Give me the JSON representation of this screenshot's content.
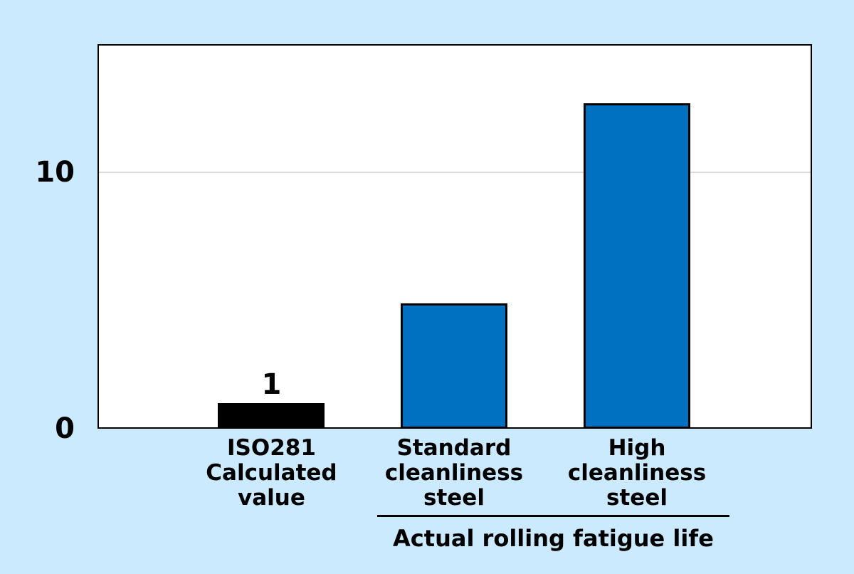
{
  "page": {
    "background_color": "#cceafd",
    "text_color": "#000000"
  },
  "chart_data": {
    "type": "bar",
    "title": "",
    "categories": [
      "ISO281\nCalculated\nvalue",
      "Standard\ncleanliness\nsteel",
      "High\ncleanliness\nsteel"
    ],
    "values": [
      1,
      4.9,
      12.7
    ],
    "data_labels": [
      "1",
      null,
      null
    ],
    "bar_fill_colors": [
      "#000000",
      "#0071c1",
      "#0071c1"
    ],
    "bar_border_colors": [
      null,
      "#000000",
      "#000000"
    ],
    "yticks": [
      "0",
      "10"
    ],
    "ytick_values": [
      0,
      10
    ],
    "ylim": [
      0,
      15
    ],
    "xlabel": "",
    "ylabel": "",
    "grid": "horizontal-major-only",
    "gridline_color": "#d9d9d9",
    "plot_background": "#ffffff",
    "plot_border_color": "#000000",
    "legend": "none",
    "group_annotation": {
      "label": "Actual rolling fatigue life",
      "applies_to_categories": [
        "Standard cleanliness steel",
        "High cleanliness steel"
      ]
    }
  }
}
